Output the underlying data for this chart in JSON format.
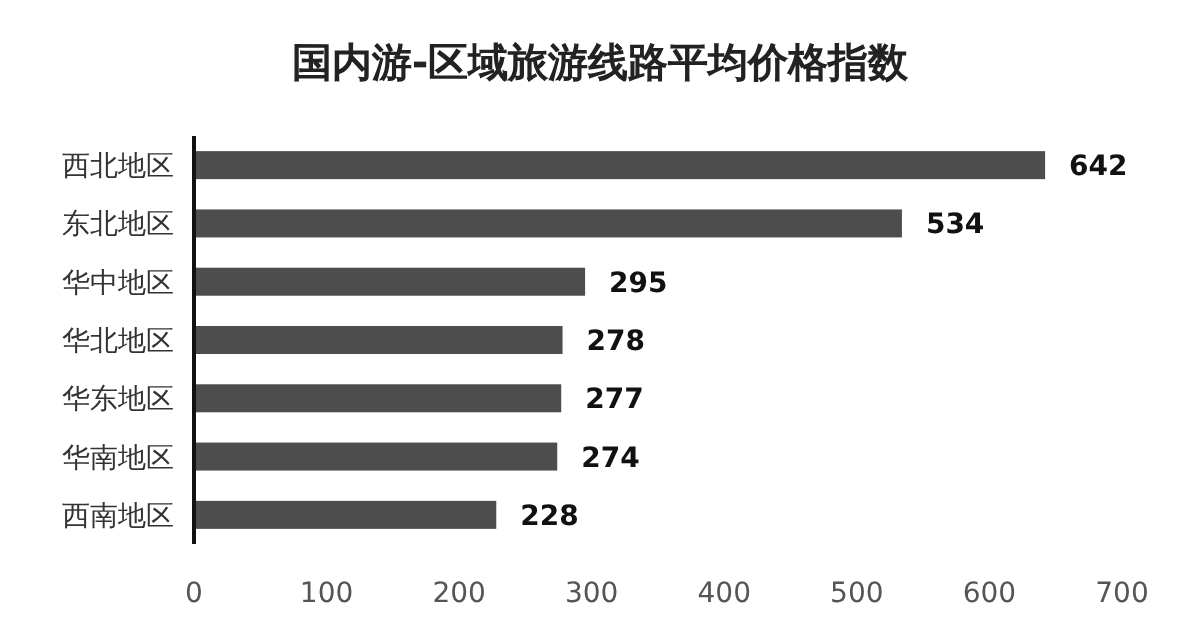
{
  "chart_data": {
    "type": "bar",
    "orientation": "horizontal",
    "title": "国内游-区域旅游线路平均价格指数",
    "categories": [
      "西北地区",
      "东北地区",
      "华中地区",
      "华北地区",
      "华东地区",
      "华南地区",
      "西南地区"
    ],
    "values": [
      642,
      534,
      295,
      278,
      277,
      274,
      228
    ],
    "color": "#4d4d4d",
    "data_labels": true,
    "xlim": [
      0,
      700
    ],
    "xticks": [
      0,
      100,
      200,
      300,
      400,
      500,
      600,
      700
    ]
  }
}
